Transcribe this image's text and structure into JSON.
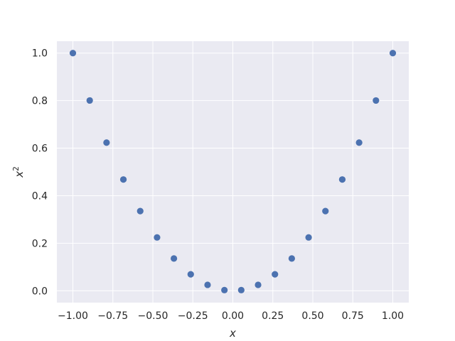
{
  "chart_data": {
    "type": "scatter",
    "xlabel": "x",
    "ylabel_base": "x",
    "ylabel_sup": "2",
    "xlim": [
      -1.1,
      1.1
    ],
    "ylim": [
      -0.05,
      1.05
    ],
    "grid": true,
    "x_ticks": [
      -1.0,
      -0.75,
      -0.5,
      -0.25,
      0.0,
      0.25,
      0.5,
      0.75,
      1.0
    ],
    "x_tick_labels": [
      "−1.00",
      "−0.75",
      "−0.50",
      "−0.25",
      "0.00",
      "0.25",
      "0.50",
      "0.75",
      "1.00"
    ],
    "y_ticks": [
      0.0,
      0.2,
      0.4,
      0.6,
      0.8,
      1.0
    ],
    "y_tick_labels": [
      "0.0",
      "0.2",
      "0.4",
      "0.6",
      "0.8",
      "1.0"
    ],
    "series": [
      {
        "color": "#4c72b0",
        "x": [
          -1.0,
          -0.8947,
          -0.7895,
          -0.6842,
          -0.5789,
          -0.4737,
          -0.3684,
          -0.2632,
          -0.1579,
          -0.0526,
          0.0526,
          0.1579,
          0.2632,
          0.3684,
          0.4737,
          0.5789,
          0.6842,
          0.7895,
          0.8947,
          1.0
        ],
        "y": [
          1.0,
          0.8006,
          0.6233,
          0.4681,
          0.3352,
          0.2244,
          0.1357,
          0.0693,
          0.0249,
          0.0028,
          0.0028,
          0.0249,
          0.0693,
          0.1357,
          0.2244,
          0.3352,
          0.4681,
          0.6233,
          0.8006,
          1.0
        ]
      }
    ]
  },
  "colors": {
    "plot_background": "#eaeaf2",
    "grid": "#ffffff",
    "marker": "#4c72b0",
    "text": "#262626"
  }
}
